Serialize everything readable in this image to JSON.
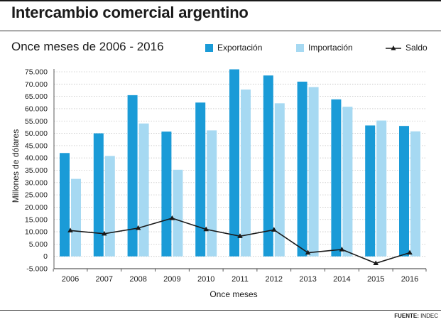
{
  "title": "Intercambio comercial argentino",
  "subtitle": "Once meses de 2006 - 2016",
  "source_label": "FUENTE:",
  "source_value": "INDEC",
  "colors": {
    "exportacion": "#1a9bd7",
    "importacion": "#a6d9f2",
    "saldo": "#1a1a1a",
    "grid": "#c6c6c6"
  },
  "chart_data": {
    "type": "bar",
    "title": "Intercambio comercial argentino",
    "subtitle": "Once meses de 2006 - 2016",
    "xlabel": "Once meses",
    "ylabel": "Millones de dólares",
    "ylim": [
      -5000,
      75000
    ],
    "yticks": [
      -5000,
      0,
      5000,
      10000,
      15000,
      20000,
      25000,
      30000,
      35000,
      40000,
      45000,
      50000,
      55000,
      60000,
      65000,
      70000,
      75000
    ],
    "ytick_labels": [
      "-5.000",
      "0",
      "5.000",
      "10.000",
      "15.000",
      "20.000",
      "25.000",
      "30.000",
      "35.000",
      "40.000",
      "45.000",
      "50.000",
      "55.000",
      "60.000",
      "65.000",
      "70.000",
      "75.000"
    ],
    "categories": [
      "2006",
      "2007",
      "2008",
      "2009",
      "2010",
      "2011",
      "2012",
      "2013",
      "2014",
      "2015",
      "2016"
    ],
    "series": [
      {
        "name": "Exportación",
        "type": "bar",
        "values": [
          42000,
          50000,
          65500,
          50700,
          62500,
          76000,
          73500,
          71000,
          63800,
          53200,
          53000
        ]
      },
      {
        "name": "Importación",
        "type": "bar",
        "values": [
          31500,
          40800,
          54000,
          35200,
          51200,
          67800,
          62200,
          68800,
          60800,
          55200,
          50800
        ]
      },
      {
        "name": "Saldo",
        "type": "line",
        "values": [
          10500,
          9200,
          11500,
          15500,
          11000,
          8200,
          10800,
          1500,
          2800,
          -2800,
          1500
        ]
      }
    ],
    "legend_position": "top-right",
    "grid": true
  }
}
